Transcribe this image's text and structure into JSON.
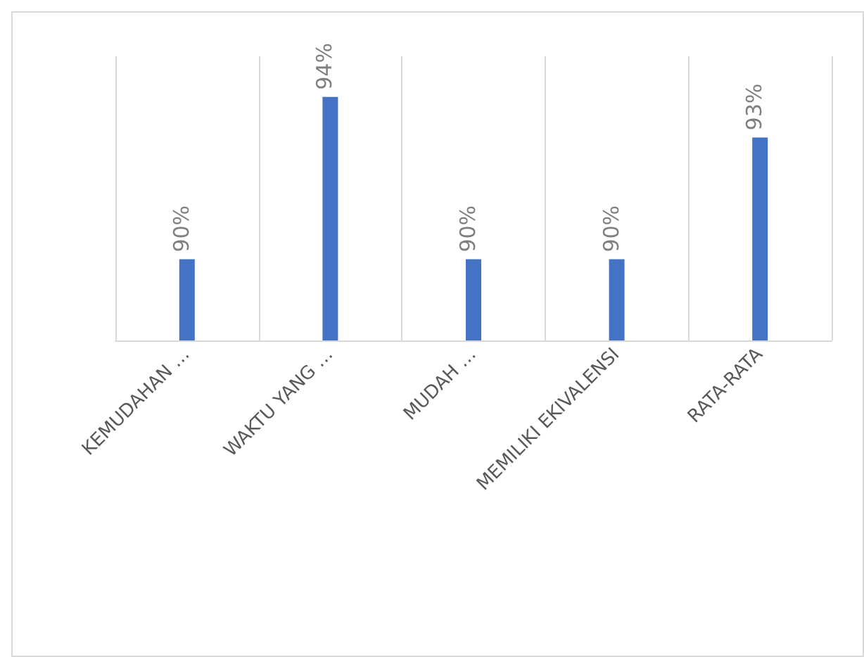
{
  "chart_data": {
    "type": "bar",
    "categories": [
      "KEMUDAHAN …",
      "WAKTU YANG …",
      "MUDAH …",
      "MEMILIKI EKIVALENSI",
      "RATA-RATA"
    ],
    "values": [
      90,
      94,
      90,
      90,
      93
    ],
    "value_labels": [
      "90%",
      "94%",
      "90%",
      "90%",
      "93%"
    ],
    "color": "#4472c4",
    "ylim": [
      88,
      95
    ],
    "tick_labels": "x",
    "grid": "x"
  }
}
